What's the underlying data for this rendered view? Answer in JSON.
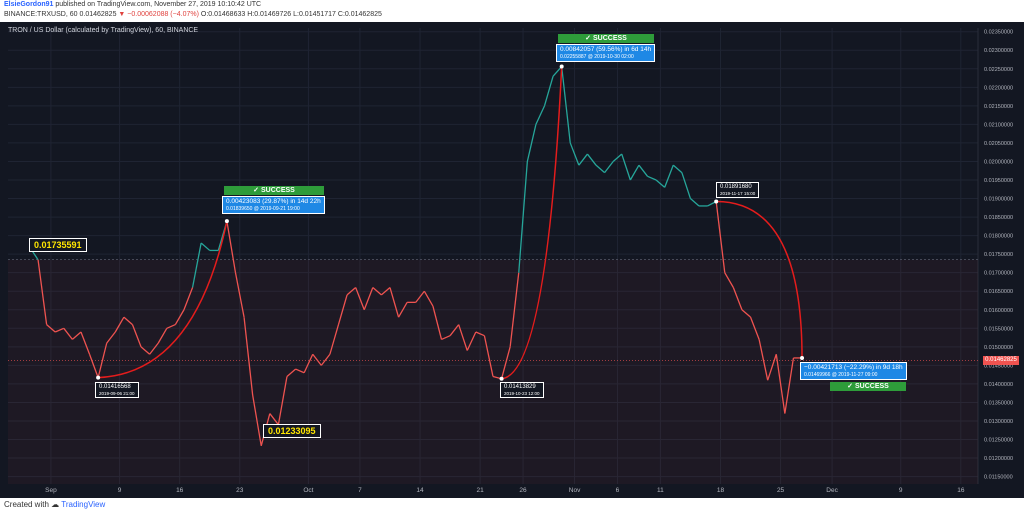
{
  "header": {
    "user": "ElsieGordon91",
    "published": "published on TradingView.com, November 27, 2019 10:10:42 UTC",
    "symbol": "BINANCE:TRXUSD, 60",
    "last": "0.01462825",
    "change": "−0.00062088 (−4.07%)",
    "ohlc": "O:0.01468633 H:0.01469726 L:0.01451717 C:0.01462825"
  },
  "footer": {
    "created_with": "Created with",
    "brand": "TradingView"
  },
  "colors": {
    "up": "#26a69a",
    "down": "#ef5350",
    "background": "#131722",
    "grid": "#1f2433",
    "arrow": "#e51c1c",
    "callout": "#1e88e5",
    "success": "#2e9c3a"
  },
  "chart_data": {
    "type": "line",
    "title": "TRON / US Dollar (calculated by TradingView), 60, BINANCE",
    "xlabel": "",
    "ylabel": "",
    "x_ticks": [
      "Sep",
      "9",
      "16",
      "23",
      "Oct",
      "7",
      "14",
      "21",
      "26",
      "Nov",
      "6",
      "11",
      "18",
      "25",
      "Dec",
      "9",
      "16"
    ],
    "y_ticks": [
      "0.01150000",
      "0.01200000",
      "0.01250000",
      "0.01300000",
      "0.01350000",
      "0.01400000",
      "0.01450000",
      "0.01500000",
      "0.01550000",
      "0.01600000",
      "0.01650000",
      "0.01700000",
      "0.01750000",
      "0.01800000",
      "0.01850000",
      "0.01900000",
      "0.01950000",
      "0.02000000",
      "0.02050000",
      "0.02100000",
      "0.02150000",
      "0.02200000",
      "0.02250000",
      "0.02300000",
      "0.02350000"
    ],
    "ylim": [
      0.0113,
      0.0236
    ],
    "last_price_label": "0.01462825",
    "last_price": 0.01462825,
    "reference_level": 0.01735591,
    "grid": true,
    "series": [
      {
        "x": [
          "2019-08-29",
          "2019-08-30",
          "2019-08-31",
          "2019-09-01",
          "2019-09-02",
          "2019-09-03",
          "2019-09-04",
          "2019-09-05",
          "2019-09-06",
          "2019-09-07",
          "2019-09-08",
          "2019-09-09",
          "2019-09-10",
          "2019-09-11",
          "2019-09-12",
          "2019-09-13",
          "2019-09-14",
          "2019-09-15",
          "2019-09-16",
          "2019-09-17",
          "2019-09-18",
          "2019-09-19",
          "2019-09-20",
          "2019-09-21",
          "2019-09-22",
          "2019-09-23",
          "2019-09-24",
          "2019-09-25",
          "2019-09-26",
          "2019-09-27",
          "2019-09-28",
          "2019-09-29",
          "2019-09-30",
          "2019-10-01",
          "2019-10-02",
          "2019-10-03",
          "2019-10-04",
          "2019-10-05",
          "2019-10-06",
          "2019-10-07",
          "2019-10-08",
          "2019-10-09",
          "2019-10-10",
          "2019-10-11",
          "2019-10-12",
          "2019-10-13",
          "2019-10-14",
          "2019-10-15",
          "2019-10-16",
          "2019-10-17",
          "2019-10-18",
          "2019-10-19",
          "2019-10-20",
          "2019-10-21",
          "2019-10-22",
          "2019-10-23",
          "2019-10-24",
          "2019-10-25",
          "2019-10-26",
          "2019-10-27",
          "2019-10-28",
          "2019-10-29",
          "2019-10-30",
          "2019-10-31",
          "2019-11-01",
          "2019-11-02",
          "2019-11-03",
          "2019-11-04",
          "2019-11-05",
          "2019-11-06",
          "2019-11-07",
          "2019-11-08",
          "2019-11-09",
          "2019-11-10",
          "2019-11-11",
          "2019-11-12",
          "2019-11-13",
          "2019-11-14",
          "2019-11-15",
          "2019-11-16",
          "2019-11-17",
          "2019-11-18",
          "2019-11-19",
          "2019-11-20",
          "2019-11-21",
          "2019-11-22",
          "2019-11-23",
          "2019-11-24",
          "2019-11-25",
          "2019-11-26",
          "2019-11-27"
        ],
        "values": [
          0.0177,
          0.01735,
          0.0156,
          0.0154,
          0.0155,
          0.0152,
          0.0154,
          0.0148,
          0.01417,
          0.0151,
          0.0154,
          0.0158,
          0.0156,
          0.015,
          0.0148,
          0.0151,
          0.0155,
          0.0156,
          0.016,
          0.0166,
          0.0178,
          0.0176,
          0.0176,
          0.01839,
          0.017,
          0.0158,
          0.0137,
          0.01233,
          0.0132,
          0.0129,
          0.0142,
          0.0144,
          0.0143,
          0.0148,
          0.0145,
          0.0148,
          0.0156,
          0.0164,
          0.0166,
          0.016,
          0.0166,
          0.0164,
          0.0166,
          0.0158,
          0.0162,
          0.0162,
          0.0165,
          0.0161,
          0.0152,
          0.0153,
          0.0156,
          0.0149,
          0.0154,
          0.0153,
          0.0142,
          0.01414,
          0.015,
          0.017,
          0.02,
          0.021,
          0.0215,
          0.0223,
          0.02256,
          0.0205,
          0.0199,
          0.0202,
          0.0199,
          0.0197,
          0.02,
          0.0202,
          0.0195,
          0.0199,
          0.0196,
          0.0195,
          0.0193,
          0.0199,
          0.0197,
          0.019,
          0.0188,
          0.0188,
          0.01892,
          0.017,
          0.0166,
          0.016,
          0.0158,
          0.0152,
          0.0141,
          0.0148,
          0.0132,
          0.0147,
          0.0147
        ]
      }
    ],
    "annotations": [
      {
        "kind": "low",
        "price": "0.01416568",
        "time": "2019-09-06 21:00"
      },
      {
        "kind": "measure",
        "change": "0.00423083 (29.87%) in 14d 22h",
        "target": "0.01839650 @ 2019-09-21 19:00",
        "status": "SUCCESS"
      },
      {
        "kind": "low",
        "price": "0.01413829",
        "time": "2019-10-23 12:00"
      },
      {
        "kind": "measure",
        "change": "0.00842057 (59.56%) in 6d 14h",
        "target": "0.02255887 @ 2019-10-30 02:00",
        "status": "SUCCESS"
      },
      {
        "kind": "high",
        "price": "0.01891680",
        "time": "2019-11-17 15:00"
      },
      {
        "kind": "measure",
        "change": "−0.00421713 (−22.29%) in 9d 18h",
        "target": "0.01469966 @ 2019-11-27 09:00",
        "status": "SUCCESS"
      },
      {
        "kind": "level",
        "price": "0.01735591"
      },
      {
        "kind": "level",
        "price": "0.01233095"
      }
    ]
  }
}
